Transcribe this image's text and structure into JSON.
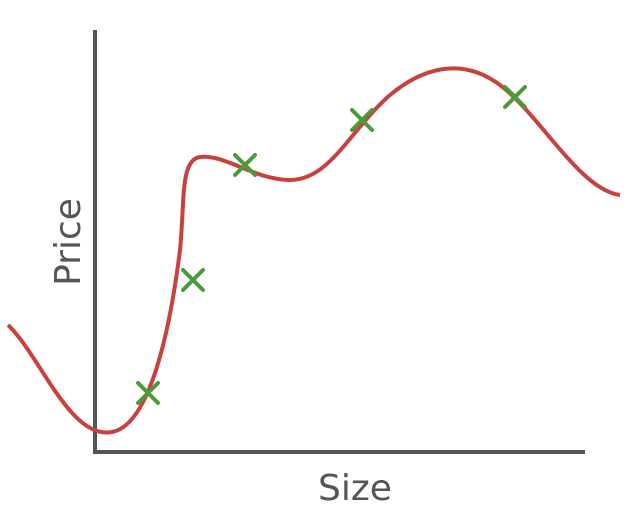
{
  "axes": {
    "x_label": "Size",
    "y_label": "Price"
  }
}
